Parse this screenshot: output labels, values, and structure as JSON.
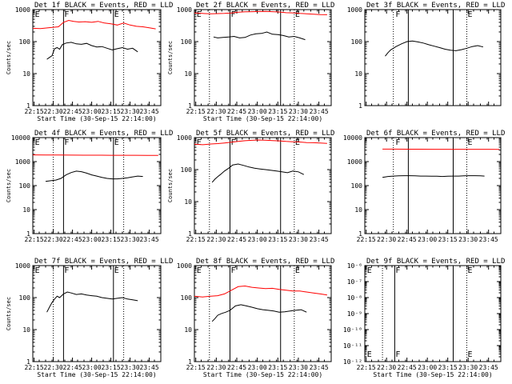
{
  "window": {
    "title": ""
  },
  "chart_data": [
    {
      "type": "line",
      "title": "Det 1f BLACK = Events, RED = LLD",
      "xlabel": "Start Time (30-Sep-15 22:14:00)",
      "ylabel": "Counts/sec",
      "xlim": [
        "22:14",
        "23:54"
      ],
      "ylim": [
        1,
        1000
      ],
      "log_y": true,
      "ytick_labels": [
        "1",
        "10",
        "100",
        "1000"
      ],
      "xtick_labels": [
        "22:15",
        "22:30",
        "22:45",
        "23:00",
        "23:15",
        "23:30",
        "23:45"
      ],
      "vlines_solid": [
        "22:38",
        "23:17"
      ],
      "vlines_dotted": [
        "22:30",
        "23:25"
      ],
      "annotations": [
        {
          "text": "E",
          "x": "22:15"
        },
        {
          "text": "F",
          "x": "22:38"
        },
        {
          "text": "E",
          "x": "23:17"
        }
      ],
      "series": [
        {
          "color": "#000000",
          "x": [
            "22:25",
            "22:27",
            "22:29",
            "22:31",
            "22:33",
            "22:35",
            "22:37",
            "22:40",
            "22:44",
            "22:48",
            "22:52",
            "22:56",
            "23:00",
            "23:04",
            "23:08",
            "23:12",
            "23:16",
            "23:20",
            "23:24",
            "23:28",
            "23:32",
            "23:36"
          ],
          "y": [
            28,
            32,
            36,
            60,
            65,
            58,
            80,
            90,
            95,
            85,
            82,
            88,
            75,
            68,
            70,
            62,
            55,
            60,
            65,
            58,
            62,
            48
          ]
        },
        {
          "color": "#ff0000",
          "x": [
            "22:14",
            "22:20",
            "22:26",
            "22:30",
            "22:34",
            "22:38",
            "22:42",
            "22:46",
            "22:50",
            "22:55",
            "23:00",
            "23:05",
            "23:10",
            "23:15",
            "23:20",
            "23:25",
            "23:30",
            "23:35",
            "23:40",
            "23:45",
            "23:50"
          ],
          "y": [
            260,
            255,
            270,
            280,
            290,
            400,
            460,
            430,
            410,
            420,
            400,
            430,
            380,
            360,
            330,
            380,
            330,
            300,
            290,
            270,
            250
          ]
        }
      ]
    },
    {
      "type": "line",
      "title": "Det 2f BLACK = Events, RED = LLD",
      "xlabel": "Start Time (30-Sep-15 22:14:00)",
      "ylabel": "Counts/sec",
      "xlim": [
        "22:14",
        "23:54"
      ],
      "ylim": [
        1,
        1000
      ],
      "log_y": true,
      "ytick_labels": [
        "1",
        "10",
        "100",
        "1000"
      ],
      "xtick_labels": [
        "22:15",
        "22:30",
        "22:45",
        "23:00",
        "23:15",
        "23:30",
        "23:45"
      ],
      "vlines_solid": [
        "22:40",
        "23:17"
      ],
      "vlines_dotted": [
        "22:25",
        "23:27"
      ],
      "annotations": [
        {
          "text": "E",
          "x": "22:15"
        },
        {
          "text": "F",
          "x": "22:40"
        },
        {
          "text": "E",
          "x": "23:27"
        }
      ],
      "series": [
        {
          "color": "#000000",
          "x": [
            "22:28",
            "22:31",
            "22:35",
            "22:39",
            "22:43",
            "22:47",
            "22:51",
            "22:55",
            "22:59",
            "23:03",
            "23:07",
            "23:11",
            "23:15",
            "23:19",
            "23:23",
            "23:27",
            "23:31",
            "23:35"
          ],
          "y": [
            140,
            130,
            135,
            140,
            145,
            130,
            135,
            160,
            175,
            180,
            200,
            170,
            165,
            155,
            140,
            145,
            130,
            115
          ]
        },
        {
          "color": "#ff0000",
          "x": [
            "22:14",
            "22:20",
            "22:26",
            "22:31",
            "22:36",
            "22:41",
            "22:46",
            "22:51",
            "22:56",
            "23:01",
            "23:06",
            "23:11",
            "23:16",
            "23:21",
            "23:26",
            "23:31",
            "23:36",
            "23:41",
            "23:46",
            "23:51"
          ],
          "y": [
            780,
            760,
            740,
            750,
            760,
            780,
            830,
            850,
            860,
            870,
            880,
            860,
            840,
            800,
            790,
            760,
            740,
            720,
            700,
            690
          ]
        }
      ]
    },
    {
      "type": "line",
      "title": "Det 3f BLACK = Events, RED = LLD",
      "xlabel": "",
      "ylabel": "",
      "xlim": [
        "22:14",
        "23:54"
      ],
      "ylim": [
        1,
        1000
      ],
      "log_y": true,
      "ytick_labels": [
        "1",
        "10",
        "100",
        "1000"
      ],
      "xtick_labels": [],
      "vlines_solid": [
        "22:46",
        "23:19"
      ],
      "vlines_dotted": [
        "22:35",
        "23:29"
      ],
      "annotations": [
        {
          "text": "F",
          "x": "22:36"
        },
        {
          "text": "E",
          "x": "23:29"
        }
      ],
      "series": [
        {
          "color": "#000000",
          "x": [
            "22:29",
            "22:31",
            "22:33",
            "22:37",
            "22:41",
            "22:45",
            "22:49",
            "22:53",
            "22:57",
            "23:01",
            "23:05",
            "23:09",
            "23:13",
            "23:17",
            "23:21",
            "23:25",
            "23:29",
            "23:33",
            "23:37",
            "23:41"
          ],
          "y": [
            35,
            45,
            55,
            70,
            85,
            100,
            105,
            98,
            90,
            80,
            72,
            65,
            58,
            54,
            52,
            56,
            62,
            70,
            75,
            68
          ]
        }
      ]
    },
    {
      "type": "line",
      "title": "Det 4f BLACK = Events, RED = LLD",
      "xlabel": "",
      "ylabel": "Counts/sec",
      "xlim": [
        "22:14",
        "23:54"
      ],
      "ylim": [
        1,
        10000
      ],
      "log_y": true,
      "ytick_labels": [
        "1",
        "10",
        "100",
        "1000",
        "10000"
      ],
      "xtick_labels": [
        "22:15",
        "22:30",
        "22:45",
        "23:00",
        "23:15",
        "23:30",
        "23:45"
      ],
      "vlines_solid": [
        "22:38",
        "23:17"
      ],
      "vlines_dotted": [
        "22:30",
        "23:25"
      ],
      "annotations": [
        {
          "text": "E",
          "x": "22:15"
        },
        {
          "text": "F",
          "x": "22:38"
        },
        {
          "text": "E",
          "x": "23:17"
        }
      ],
      "series": [
        {
          "color": "#000000",
          "x": [
            "22:24",
            "22:28",
            "22:32",
            "22:36",
            "22:40",
            "22:44",
            "22:48",
            "22:52",
            "22:56",
            "23:00",
            "23:04",
            "23:08",
            "23:12",
            "23:16",
            "23:20",
            "23:24",
            "23:28",
            "23:32",
            "23:36",
            "23:40"
          ],
          "y": [
            150,
            160,
            170,
            200,
            280,
            350,
            400,
            380,
            330,
            280,
            250,
            220,
            200,
            190,
            190,
            200,
            210,
            230,
            250,
            240
          ]
        },
        {
          "color": "#ff0000",
          "x": [
            "22:14",
            "22:24",
            "22:34",
            "22:44",
            "22:54",
            "23:04",
            "23:14",
            "23:24",
            "23:34",
            "23:44",
            "23:52"
          ],
          "y": [
            1900,
            1880,
            1870,
            1860,
            1850,
            1850,
            1840,
            1840,
            1830,
            1820,
            1810
          ]
        }
      ]
    },
    {
      "type": "line",
      "title": "Det 5f BLACK = Events, RED = LLD",
      "xlabel": "",
      "ylabel": "Counts/sec",
      "xlim": [
        "22:14",
        "23:54"
      ],
      "ylim": [
        1,
        1000
      ],
      "log_y": true,
      "ytick_labels": [
        "1",
        "10",
        "100",
        "1000"
      ],
      "xtick_labels": [
        "22:15",
        "22:30",
        "22:45",
        "23:00",
        "23:15",
        "23:30",
        "23:45"
      ],
      "vlines_solid": [
        "22:40",
        "23:17"
      ],
      "vlines_dotted": [
        "22:25",
        "23:27"
      ],
      "annotations": [
        {
          "text": "E",
          "x": "22:15"
        },
        {
          "text": "F",
          "x": "22:40"
        },
        {
          "text": "E",
          "x": "23:27"
        }
      ],
      "series": [
        {
          "color": "#000000",
          "x": [
            "22:27",
            "22:29",
            "22:31",
            "22:33",
            "22:36",
            "22:39",
            "22:42",
            "22:46",
            "22:50",
            "22:54",
            "22:58",
            "23:02",
            "23:06",
            "23:10",
            "23:14",
            "23:18",
            "23:22",
            "23:26",
            "23:30",
            "23:34"
          ],
          "y": [
            40,
            50,
            60,
            70,
            90,
            110,
            140,
            150,
            135,
            120,
            110,
            105,
            100,
            95,
            90,
            85,
            80,
            90,
            85,
            70
          ]
        },
        {
          "color": "#ff0000",
          "x": [
            "22:14",
            "22:20",
            "22:26",
            "22:31",
            "22:36",
            "22:41",
            "22:46",
            "22:51",
            "22:56",
            "23:01",
            "23:06",
            "23:11",
            "23:16",
            "23:21",
            "23:26",
            "23:31",
            "23:36",
            "23:41",
            "23:46",
            "23:51"
          ],
          "y": [
            620,
            600,
            630,
            650,
            680,
            720,
            760,
            800,
            820,
            840,
            830,
            810,
            790,
            760,
            740,
            730,
            700,
            690,
            680,
            660
          ]
        }
      ]
    },
    {
      "type": "line",
      "title": "Det 6f BLACK = Events, RED = LLD",
      "xlabel": "",
      "ylabel": "",
      "xlim": [
        "22:14",
        "23:54"
      ],
      "ylim": [
        1,
        10000
      ],
      "log_y": true,
      "ytick_labels": [
        "1",
        "10",
        "100",
        "1000",
        "10000"
      ],
      "xtick_labels": [
        "22:15",
        "22:30",
        "22:45",
        "23:00",
        "23:15",
        "23:30",
        "23:45"
      ],
      "vlines_solid": [
        "22:46",
        "23:19"
      ],
      "vlines_dotted": [
        "22:35",
        "23:29"
      ],
      "annotations": [
        {
          "text": "F",
          "x": "22:36"
        },
        {
          "text": "E",
          "x": "23:29"
        }
      ],
      "series": [
        {
          "color": "#000000",
          "x": [
            "22:27",
            "22:31",
            "22:35",
            "22:39",
            "22:43",
            "22:47",
            "22:51",
            "22:55",
            "22:59",
            "23:03",
            "23:07",
            "23:11",
            "23:15",
            "23:19",
            "23:23",
            "23:27",
            "23:31",
            "23:35",
            "23:39",
            "23:42"
          ],
          "y": [
            220,
            240,
            250,
            255,
            260,
            260,
            255,
            250,
            250,
            245,
            245,
            240,
            245,
            250,
            250,
            255,
            260,
            260,
            255,
            250
          ]
        },
        {
          "color": "#ff0000",
          "x": [
            "22:27",
            "22:35",
            "22:45",
            "22:55",
            "23:05",
            "23:15",
            "23:25",
            "23:35",
            "23:45",
            "23:53"
          ],
          "y": [
            3300,
            3300,
            3280,
            3280,
            3270,
            3260,
            3260,
            3250,
            3250,
            3240
          ]
        }
      ]
    },
    {
      "type": "line",
      "title": "Det 7f BLACK = Events, RED = LLD",
      "xlabel": "Start Time (30-Sep-15 22:14:00)",
      "ylabel": "Counts/sec",
      "xlim": [
        "22:14",
        "23:54"
      ],
      "ylim": [
        1,
        1000
      ],
      "log_y": true,
      "ytick_labels": [
        "1",
        "10",
        "100",
        "1000"
      ],
      "xtick_labels": [
        "22:15",
        "22:30",
        "22:45",
        "23:00",
        "23:15",
        "23:30",
        "23:45"
      ],
      "vlines_solid": [
        "22:38",
        "23:17"
      ],
      "vlines_dotted": [
        "22:30",
        "23:25"
      ],
      "annotations": [
        {
          "text": "E",
          "x": "22:15"
        },
        {
          "text": "F",
          "x": "22:38"
        },
        {
          "text": "E",
          "x": "23:17"
        }
      ],
      "series": [
        {
          "color": "#000000",
          "x": [
            "22:25",
            "22:27",
            "22:29",
            "22:31",
            "22:33",
            "22:35",
            "22:38",
            "22:41",
            "22:44",
            "22:48",
            "22:52",
            "22:56",
            "23:00",
            "23:04",
            "23:08",
            "23:12",
            "23:16",
            "23:20",
            "23:24",
            "23:28",
            "23:32",
            "23:36"
          ],
          "y": [
            35,
            50,
            70,
            90,
            110,
            100,
            130,
            150,
            140,
            125,
            130,
            120,
            115,
            110,
            100,
            95,
            90,
            95,
            100,
            90,
            85,
            80
          ]
        }
      ]
    },
    {
      "type": "line",
      "title": "Det 8f BLACK = Events, RED = LLD",
      "xlabel": "Start Time (30-Sep-15 22:14:00)",
      "ylabel": "",
      "xlim": [
        "22:14",
        "23:54"
      ],
      "ylim": [
        1,
        1000
      ],
      "log_y": true,
      "ytick_labels": [
        "1",
        "10",
        "100",
        "1000"
      ],
      "xtick_labels": [
        "22:15",
        "22:30",
        "22:45",
        "23:00",
        "23:15",
        "23:30",
        "23:45"
      ],
      "vlines_solid": [
        "22:40",
        "23:17"
      ],
      "vlines_dotted": [
        "22:25",
        "23:27"
      ],
      "annotations": [
        {
          "text": "E",
          "x": "22:15"
        },
        {
          "text": "F",
          "x": "22:40"
        },
        {
          "text": "E",
          "x": "23:27"
        }
      ],
      "series": [
        {
          "color": "#000000",
          "x": [
            "22:27",
            "22:29",
            "22:31",
            "22:34",
            "22:37",
            "22:40",
            "22:44",
            "22:48",
            "22:52",
            "22:56",
            "23:00",
            "23:04",
            "23:08",
            "23:12",
            "23:16",
            "23:20",
            "23:24",
            "23:28",
            "23:32",
            "23:36"
          ],
          "y": [
            18,
            22,
            28,
            32,
            35,
            40,
            55,
            60,
            55,
            50,
            45,
            42,
            40,
            38,
            35,
            36,
            38,
            40,
            42,
            35
          ]
        },
        {
          "color": "#ff0000",
          "x": [
            "22:14",
            "22:20",
            "22:26",
            "22:31",
            "22:36",
            "22:41",
            "22:46",
            "22:51",
            "22:56",
            "23:01",
            "23:06",
            "23:11",
            "23:16",
            "23:21",
            "23:26",
            "23:31",
            "23:36",
            "23:41",
            "23:46",
            "23:51"
          ],
          "y": [
            110,
            105,
            110,
            115,
            130,
            170,
            220,
            230,
            210,
            200,
            190,
            195,
            180,
            170,
            160,
            160,
            150,
            140,
            130,
            120
          ]
        }
      ]
    },
    {
      "type": "line",
      "title": "Det 9f BLACK = Events, RED = LLD",
      "xlabel": "Start Time (30-Sep-15 22:14:00)",
      "ylabel": "",
      "xlim": [
        "22:14",
        "23:54"
      ],
      "ylim": [
        1e-12,
        1e-06
      ],
      "log_y": true,
      "ytick_labels": [
        "10⁻¹²",
        "10⁻¹¹",
        "10⁻¹⁰",
        "10⁻⁹",
        "10⁻⁸",
        "10⁻⁷",
        "10⁻⁶"
      ],
      "xtick_labels": [
        "22:15",
        "22:30",
        "22:45",
        "23:00",
        "23:15",
        "23:30",
        "23:45"
      ],
      "vlines_solid": [
        "22:36",
        "23:19"
      ],
      "vlines_dotted": [
        "22:27",
        "23:29"
      ],
      "annotations": [
        {
          "text": "E",
          "x": "22:15"
        },
        {
          "text": "F",
          "x": "22:36"
        },
        {
          "text": "E",
          "x": "23:29"
        }
      ],
      "series": []
    }
  ]
}
